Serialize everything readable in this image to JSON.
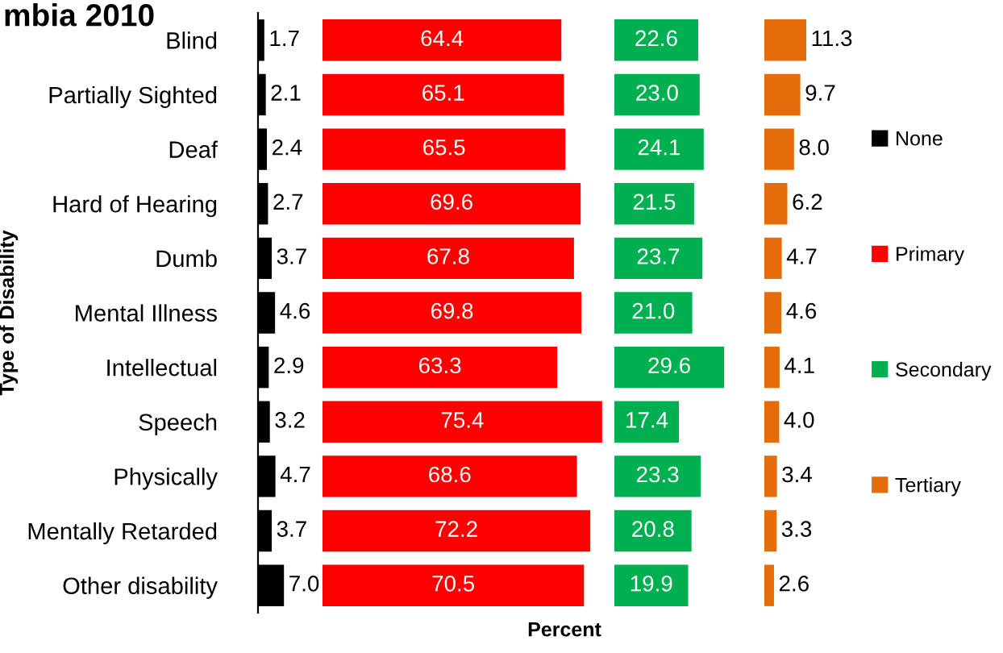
{
  "chart_data": [
    {
      "type": "bar",
      "orientation": "horizontal",
      "title": "mbia 2010",
      "ylabel": "Type of Disability",
      "categories": [
        "Blind",
        "Partially Sighted",
        "Deaf",
        "Hard of Hearing",
        "Dumb",
        "Mental Illness",
        "Intellectual",
        "Speech",
        "Physically",
        "Mentally Retarded",
        "Other disability"
      ],
      "series": [
        {
          "name": "None",
          "color": "#000000",
          "values": [
            1.7,
            2.1,
            2.4,
            2.7,
            3.7,
            4.6,
            2.9,
            3.2,
            4.7,
            3.7,
            7.0
          ],
          "value_labels": [
            "1.7",
            "2.1",
            "2.4",
            "2.7",
            "3.7",
            "4.6",
            "2.9",
            "3.2",
            "4.7",
            "3.7",
            "7.0"
          ]
        }
      ],
      "legend": "right",
      "tick_labels": "y"
    },
    {
      "type": "bar",
      "orientation": "horizontal",
      "xlabel": "Percent",
      "categories": [
        null,
        null,
        null,
        null,
        null,
        null,
        null,
        null,
        null,
        null,
        null
      ],
      "series": [
        {
          "name": "Primary",
          "color": "#ff0000",
          "values": [
            64.4,
            65.1,
            65.5,
            69.6,
            67.8,
            69.8,
            63.3,
            75.4,
            68.6,
            72.2,
            70.5
          ],
          "value_labels": [
            "64.4",
            "65.1",
            "65.5",
            "69.6",
            "67.8",
            "69.8",
            "63.3",
            "75.4",
            "68.6",
            "72.2",
            "70.5"
          ]
        }
      ],
      "legend": "right",
      "tick_labels": false
    },
    {
      "type": "bar",
      "orientation": "horizontal",
      "categories": [
        null,
        null,
        null,
        null,
        null,
        null,
        null,
        null,
        null,
        null,
        null
      ],
      "series": [
        {
          "name": "Secondary",
          "color": "#00b050",
          "values": [
            22.6,
            23.0,
            24.1,
            21.5,
            23.7,
            21.0,
            29.6,
            17.4,
            23.3,
            20.8,
            19.9
          ],
          "value_labels": [
            "22.6",
            "23.0",
            "24.1",
            "21.5",
            "23.7",
            "21.0",
            "29.6",
            "17.4",
            "23.3",
            "20.8",
            "19.9"
          ]
        }
      ],
      "legend": "right",
      "tick_labels": false
    },
    {
      "type": "bar",
      "orientation": "horizontal",
      "categories": [
        null,
        null,
        null,
        null,
        null,
        null,
        null,
        null,
        null,
        null,
        null
      ],
      "series": [
        {
          "name": "Tertiary",
          "color": "#e46c0a",
          "values": [
            11.3,
            9.7,
            8.0,
            6.2,
            4.7,
            4.6,
            4.1,
            4.0,
            3.4,
            3.3,
            2.6
          ],
          "value_labels": [
            "11.3",
            "9.7",
            "8.0",
            "6.2",
            "4.7",
            "4.6",
            "4.1",
            "4.0",
            "3.4",
            "3.3",
            "2.6"
          ]
        }
      ],
      "legend": "right",
      "tick_labels": false
    }
  ]
}
